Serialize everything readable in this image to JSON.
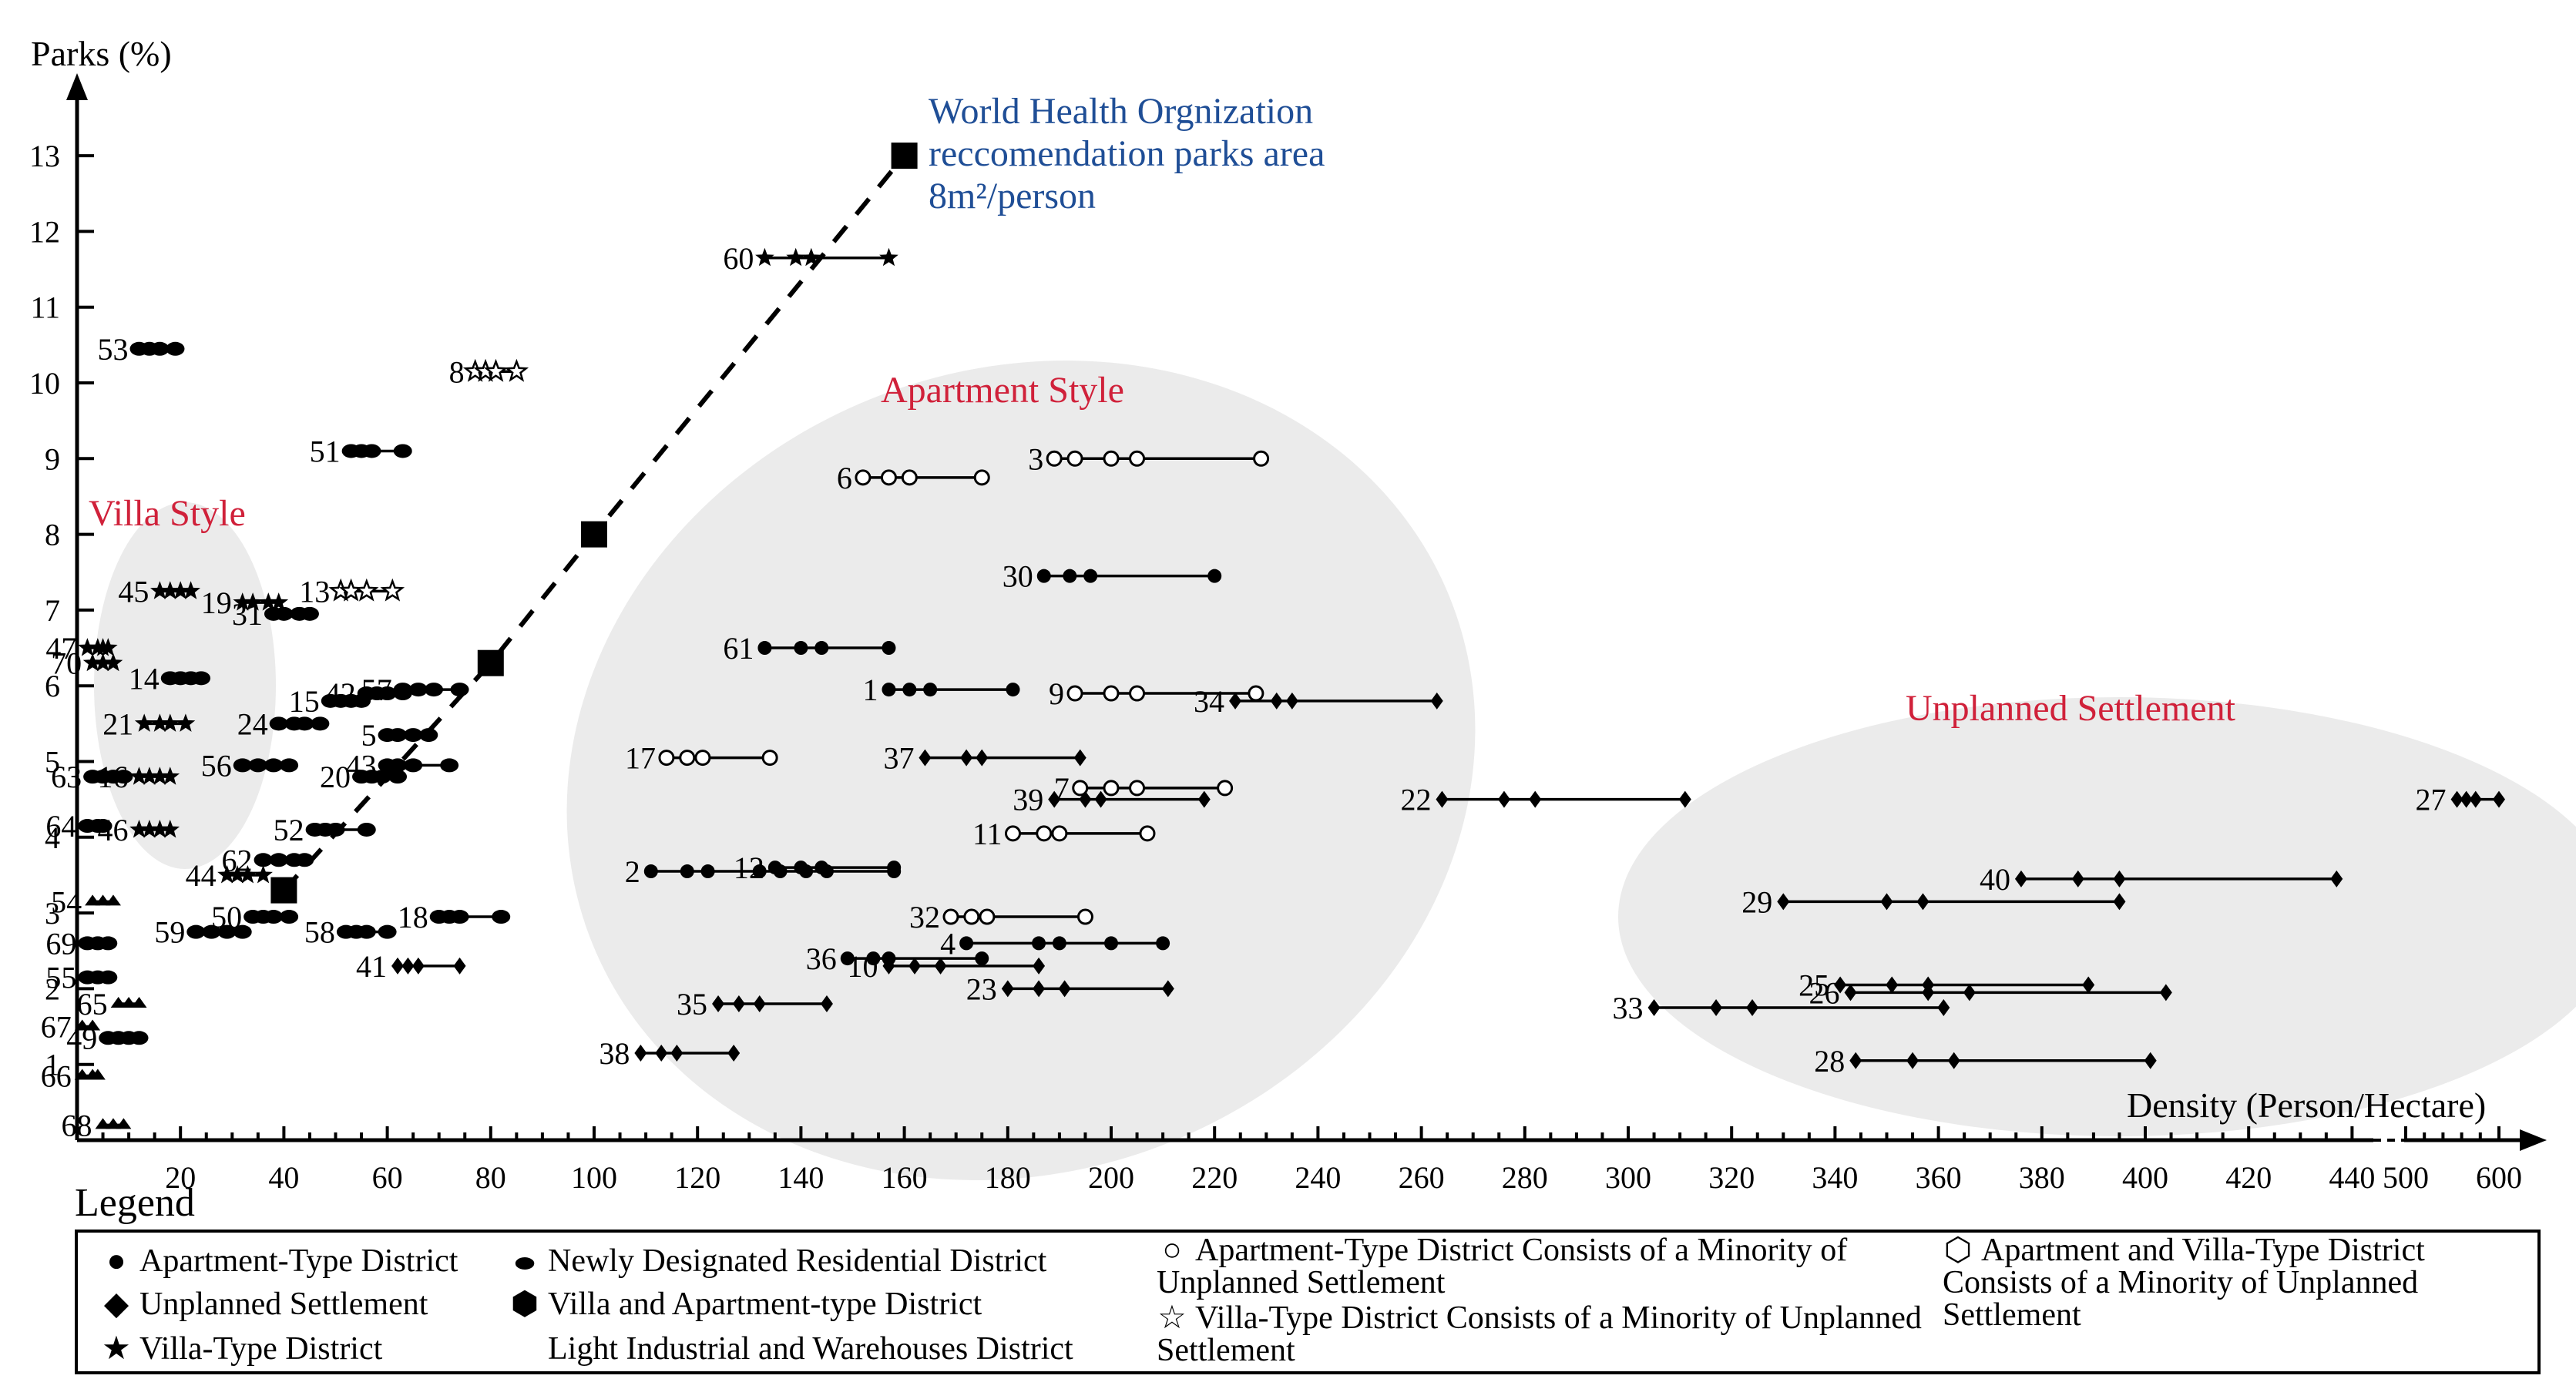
{
  "chart_data": {
    "type": "scatter",
    "xlabel": "Density (Person/Hectare)",
    "ylabel": "Parks (%)",
    "x_ticks": [
      "20",
      "40",
      "60",
      "80",
      "100",
      "120",
      "140",
      "160",
      "180",
      "200",
      "220",
      "240",
      "260",
      "280",
      "300",
      "320",
      "340",
      "360",
      "380",
      "400",
      "420",
      "440",
      "500",
      "600"
    ],
    "y_ticks": [
      "1",
      "2",
      "3",
      "4",
      "5",
      "6",
      "7",
      "8",
      "9",
      "10",
      "11",
      "12",
      "13"
    ],
    "xlim": [
      0,
      620
    ],
    "ylim": [
      0,
      14
    ],
    "x_axis_break": "440 to 500",
    "regions": [
      {
        "name": "villa",
        "label": "Villa Style"
      },
      {
        "name": "apartment",
        "label": "Apartment Style"
      },
      {
        "name": "unplanned",
        "label": "Unplanned Settlement"
      }
    ],
    "who_recommendation": {
      "label_lines": [
        "World Health Orgnization",
        "reccomendation parks area",
        "8m²/person"
      ],
      "points": [
        [
          40,
          3.3
        ],
        [
          80,
          6.3
        ],
        [
          100,
          8.0
        ],
        [
          160,
          13.0
        ]
      ]
    },
    "districts": [
      {
        "id": "1",
        "type": "apartment",
        "y": 5.95,
        "x": [
          157,
          161,
          165,
          181
        ]
      },
      {
        "id": "2",
        "type": "apartment",
        "y": 3.55,
        "x": [
          111,
          118,
          122,
          132,
          136,
          141,
          145,
          158
        ]
      },
      {
        "id": "3",
        "type": "apt-minority",
        "y": 9.0,
        "x": [
          189,
          193,
          200,
          205,
          229
        ]
      },
      {
        "id": "4",
        "type": "apartment",
        "y": 2.6,
        "x": [
          172,
          186,
          190,
          200,
          210
        ]
      },
      {
        "id": "5",
        "type": "newly",
        "y": 5.35,
        "x": [
          60,
          62,
          65,
          68
        ]
      },
      {
        "id": "6",
        "type": "apt-minority",
        "y": 8.75,
        "x": [
          152,
          157,
          161,
          175
        ]
      },
      {
        "id": "7",
        "type": "apt-minority",
        "y": 4.65,
        "x": [
          194,
          200,
          205,
          222
        ]
      },
      {
        "id": "8",
        "type": "villa-minority",
        "y": 10.15,
        "x": [
          77,
          79,
          81,
          85
        ]
      },
      {
        "id": "9",
        "type": "apt-minority",
        "y": 5.9,
        "x": [
          193,
          200,
          205,
          228
        ]
      },
      {
        "id": "10",
        "type": "unplanned",
        "y": 2.3,
        "x": [
          157,
          162,
          167,
          186
        ]
      },
      {
        "id": "11",
        "type": "apt-minority",
        "y": 4.05,
        "x": [
          181,
          187,
          190,
          207
        ]
      },
      {
        "id": "12",
        "type": "apartment",
        "y": 3.6,
        "x": [
          135,
          140,
          144,
          158
        ]
      },
      {
        "id": "13",
        "type": "villa-minority",
        "y": 7.25,
        "x": [
          51,
          53,
          56,
          61
        ]
      },
      {
        "id": "14",
        "type": "newly",
        "y": 6.1,
        "x": [
          18,
          20,
          22,
          24
        ]
      },
      {
        "id": "15",
        "type": "newly",
        "y": 5.8,
        "x": [
          49,
          51,
          53,
          55
        ]
      },
      {
        "id": "16",
        "type": "villa",
        "y": 4.8,
        "x": [
          12,
          14,
          16,
          18
        ]
      },
      {
        "id": "17",
        "type": "apt-minority",
        "y": 5.05,
        "x": [
          114,
          118,
          121,
          134
        ]
      },
      {
        "id": "18",
        "type": "newly",
        "y": 2.95,
        "x": [
          70,
          72,
          74,
          82
        ]
      },
      {
        "id": "19",
        "type": "villa",
        "y": 7.1,
        "x": [
          32,
          34,
          37,
          39
        ]
      },
      {
        "id": "20",
        "type": "newly",
        "y": 4.8,
        "x": [
          55,
          57,
          59,
          62
        ]
      },
      {
        "id": "21",
        "type": "villa",
        "y": 5.5,
        "x": [
          13,
          16,
          18,
          21
        ]
      },
      {
        "id": "22",
        "type": "unplanned",
        "y": 4.5,
        "x": [
          264,
          276,
          282,
          311
        ]
      },
      {
        "id": "23",
        "type": "unplanned",
        "y": 2.0,
        "x": [
          180,
          186,
          191,
          211
        ]
      },
      {
        "id": "24",
        "type": "newly",
        "y": 5.5,
        "x": [
          39,
          42,
          44,
          47
        ]
      },
      {
        "id": "25",
        "type": "unplanned",
        "y": 2.05,
        "x": [
          341,
          351,
          358,
          389
        ]
      },
      {
        "id": "26",
        "type": "unplanned",
        "y": 1.95,
        "x": [
          343,
          358,
          366,
          404
        ]
      },
      {
        "id": "27",
        "type": "unplanned",
        "y": 4.5,
        "x": [
          555,
          565,
          575,
          600
        ]
      },
      {
        "id": "28",
        "type": "unplanned",
        "y": 1.05,
        "x": [
          344,
          355,
          363,
          401
        ]
      },
      {
        "id": "29",
        "type": "unplanned",
        "y": 3.15,
        "x": [
          330,
          350,
          357,
          395
        ]
      },
      {
        "id": "30",
        "type": "apartment",
        "y": 7.45,
        "x": [
          187,
          192,
          196,
          220
        ]
      },
      {
        "id": "31",
        "type": "newly",
        "y": 6.95,
        "x": [
          38,
          40,
          43,
          45
        ]
      },
      {
        "id": "32",
        "type": "apt-minority",
        "y": 2.95,
        "x": [
          169,
          173,
          176,
          195
        ]
      },
      {
        "id": "33",
        "type": "unplanned",
        "y": 1.75,
        "x": [
          305,
          317,
          324,
          361
        ]
      },
      {
        "id": "34",
        "type": "unplanned",
        "y": 5.8,
        "x": [
          224,
          232,
          235,
          263
        ]
      },
      {
        "id": "35",
        "type": "unplanned",
        "y": 1.8,
        "x": [
          124,
          128,
          132,
          145
        ]
      },
      {
        "id": "36",
        "type": "apartment",
        "y": 2.4,
        "x": [
          149,
          154,
          157,
          175
        ]
      },
      {
        "id": "37",
        "type": "unplanned",
        "y": 5.05,
        "x": [
          164,
          172,
          175,
          194
        ]
      },
      {
        "id": "38",
        "type": "unplanned",
        "y": 1.15,
        "x": [
          109,
          113,
          116,
          127
        ]
      },
      {
        "id": "39",
        "type": "unplanned",
        "y": 4.5,
        "x": [
          189,
          195,
          198,
          218
        ]
      },
      {
        "id": "40",
        "type": "unplanned",
        "y": 3.45,
        "x": [
          376,
          387,
          395,
          437
        ]
      },
      {
        "id": "41",
        "type": "unplanned",
        "y": 2.3,
        "x": [
          62,
          64,
          66,
          74
        ]
      },
      {
        "id": "42",
        "type": "newly",
        "y": 5.9,
        "x": [
          56,
          58,
          60,
          63
        ]
      },
      {
        "id": "43",
        "type": "newly",
        "y": 4.95,
        "x": [
          60,
          62,
          65,
          72
        ]
      },
      {
        "id": "44",
        "type": "villa",
        "y": 3.5,
        "x": [
          29,
          31,
          33,
          36
        ]
      },
      {
        "id": "45",
        "type": "villa",
        "y": 7.25,
        "x": [
          16,
          18,
          20,
          22
        ]
      },
      {
        "id": "46",
        "type": "villa",
        "y": 4.1,
        "x": [
          12,
          14,
          16,
          18
        ]
      },
      {
        "id": "47",
        "type": "villa",
        "y": 6.5,
        "x": [
          2,
          4,
          5,
          6
        ]
      },
      {
        "id": "49",
        "type": "newly",
        "y": 1.35,
        "x": [
          6,
          8,
          10,
          12
        ]
      },
      {
        "id": "50",
        "type": "newly",
        "y": 2.95,
        "x": [
          34,
          36,
          38,
          41
        ]
      },
      {
        "id": "51",
        "type": "newly",
        "y": 9.1,
        "x": [
          53,
          55,
          57,
          63
        ]
      },
      {
        "id": "52",
        "type": "newly",
        "y": 4.1,
        "x": [
          46,
          48,
          50,
          56
        ]
      },
      {
        "id": "53",
        "type": "newly",
        "y": 10.45,
        "x": [
          12,
          14,
          16,
          19
        ]
      },
      {
        "id": "54",
        "type": "light-industrial",
        "y": 3.15,
        "x": [
          3,
          5,
          7
        ]
      },
      {
        "id": "55",
        "type": "newly",
        "y": 2.15,
        "x": [
          2,
          4,
          6
        ]
      },
      {
        "id": "56",
        "type": "newly",
        "y": 4.95,
        "x": [
          32,
          35,
          38,
          41
        ]
      },
      {
        "id": "57",
        "type": "newly",
        "y": 5.95,
        "x": [
          63,
          66,
          69,
          74
        ]
      },
      {
        "id": "58",
        "type": "newly",
        "y": 2.75,
        "x": [
          52,
          54,
          56,
          60
        ]
      },
      {
        "id": "59",
        "type": "newly",
        "y": 2.75,
        "x": [
          23,
          26,
          29,
          32
        ]
      },
      {
        "id": "60",
        "type": "villa",
        "y": 11.65,
        "x": [
          133,
          139,
          142,
          157
        ]
      },
      {
        "id": "61",
        "type": "apartment",
        "y": 6.5,
        "x": [
          133,
          140,
          144,
          157
        ]
      },
      {
        "id": "62",
        "type": "newly",
        "y": 3.7,
        "x": [
          36,
          39,
          42,
          44
        ]
      },
      {
        "id": "63",
        "type": "newly",
        "y": 4.8,
        "x": [
          3,
          5,
          7,
          9
        ]
      },
      {
        "id": "64",
        "type": "newly",
        "y": 4.15,
        "x": [
          2,
          4,
          5
        ]
      },
      {
        "id": "65",
        "type": "light-industrial",
        "y": 1.8,
        "x": [
          8,
          10,
          12
        ]
      },
      {
        "id": "66",
        "type": "light-industrial",
        "y": 0.85,
        "x": [
          1,
          3,
          4
        ]
      },
      {
        "id": "67",
        "type": "light-industrial",
        "y": 1.5,
        "x": [
          1,
          3
        ]
      },
      {
        "id": "68",
        "type": "light-industrial",
        "y": 0.2,
        "x": [
          5,
          7,
          9
        ]
      },
      {
        "id": "69",
        "type": "newly",
        "y": 2.6,
        "x": [
          2,
          4,
          6
        ]
      },
      {
        "id": "70",
        "type": "villa",
        "y": 6.3,
        "x": [
          3,
          5,
          7
        ]
      }
    ]
  },
  "legend": {
    "title": "Legend",
    "items": [
      {
        "key": "apartment",
        "label": "Apartment-Type District"
      },
      {
        "key": "newly",
        "label": "Newly Designated Residential District"
      },
      {
        "key": "apt-minority",
        "label": "Apartment-Type District Consists of a Minority of Unplanned Settlement"
      },
      {
        "key": "apt-villa",
        "label": "Apartment and Villa-Type District Consists of  a Minority of Unplanned Settlement"
      },
      {
        "key": "unplanned",
        "label": "Unplanned Settlement"
      },
      {
        "key": "villa-apt",
        "label": "Villa and Apartment-type District"
      },
      {
        "key": "villa-minority",
        "label": "Villa-Type District Consists of a Minority of Unplanned Settlement"
      },
      {
        "key": "villa",
        "label": "Villa-Type District"
      },
      {
        "key": "light-industrial",
        "label": "Light Industrial and Warehouses District"
      }
    ]
  }
}
